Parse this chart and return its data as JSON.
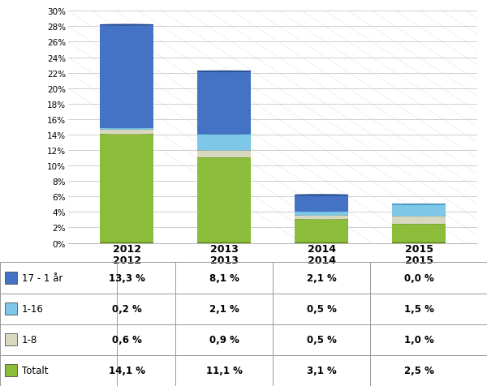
{
  "categories": [
    "2012",
    "2013",
    "2014",
    "2015"
  ],
  "series": [
    {
      "label": "Totalt",
      "values": [
        14.1,
        11.1,
        3.1,
        2.5
      ],
      "face_color": "#8BBD3A",
      "top_color": "#6E9A20",
      "edge_color": "#5A8010"
    },
    {
      "label": "1-8",
      "values": [
        0.6,
        0.9,
        0.5,
        1.0
      ],
      "face_color": "#D8D8C0",
      "top_color": "#B8B89A",
      "edge_color": "#999980"
    },
    {
      "label": "1-16",
      "values": [
        0.2,
        2.1,
        0.5,
        1.5
      ],
      "face_color": "#7DC8E8",
      "top_color": "#4FA8D0",
      "edge_color": "#3888B8"
    },
    {
      "label": "17 - 1 år",
      "values": [
        13.3,
        8.1,
        2.1,
        0.0
      ],
      "face_color": "#4472C4",
      "top_color": "#2A5AA0",
      "edge_color": "#1A4080"
    }
  ],
  "ylim": [
    0,
    30
  ],
  "yticks": [
    0,
    2,
    4,
    6,
    8,
    10,
    12,
    14,
    16,
    18,
    20,
    22,
    24,
    26,
    28,
    30
  ],
  "table_rows": [
    {
      "label": "17 - 1 år",
      "color": "#4472C4",
      "values": [
        "13,3 %",
        "8,1 %",
        "2,1 %",
        "0,0 %"
      ]
    },
    {
      "label": "1-16",
      "color": "#7DC8E8",
      "values": [
        "0,2 %",
        "2,1 %",
        "0,5 %",
        "1,5 %"
      ]
    },
    {
      "label": "1-8",
      "color": "#D8D8C0",
      "values": [
        "0,6 %",
        "0,9 %",
        "0,5 %",
        "1,0 %"
      ]
    },
    {
      "label": "Totalt",
      "color": "#8BBD3A",
      "values": [
        "14,1 %",
        "11,1 %",
        "3,1 %",
        "2,5 %"
      ]
    }
  ]
}
